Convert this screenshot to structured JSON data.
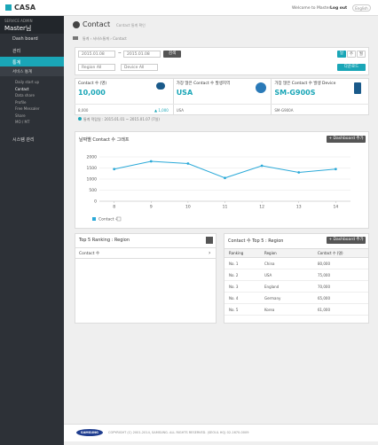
{
  "header": {
    "logo": "CASA",
    "welcome": "Welcome to Master",
    "logout": "Log out",
    "lang": "English"
  },
  "sidebar": {
    "role": "SERVICE ADMIN",
    "user": "Master님",
    "menu": [
      "Dash board",
      "관리",
      "통계"
    ],
    "section": "서비스 통계",
    "submenu": [
      "Daily start up",
      "Contact",
      "Data share",
      "Profile",
      "Free Messaler",
      "Share",
      "MO / MT"
    ],
    "system": "시스템 관리"
  },
  "page": {
    "title": "Contact",
    "subtitle": "Contact 통계 확인",
    "breadcrumb": [
      "통계",
      "서비스통계",
      "Contact"
    ]
  },
  "filter": {
    "start": "2015.01.08",
    "tilde": "~",
    "end": "2015.01.08",
    "search": "검색",
    "periods": [
      "일",
      "주",
      "월"
    ],
    "region": "Region All",
    "device": "Device All",
    "download": "다운로드"
  },
  "cards": [
    {
      "label": "Contact 수 (명)",
      "value": "10,000",
      "foot": "8,000",
      "delta": "▲ 1,000"
    },
    {
      "label": "가장 많은 Contact 수 발생지역",
      "value": "USA",
      "foot": "USA"
    },
    {
      "label": "가장 많은 Contact 수 발생 Device",
      "value": "SM-G900S",
      "foot": "SM-G900A"
    }
  ],
  "note": "통계 적립일 : 2015.01.01 ~ 2015.01.07 (7일)",
  "chart": {
    "type": "line",
    "title": "날짜별 Contact 수 그래프",
    "button": "+ Dashboard 추가",
    "x": [
      8,
      9,
      10,
      11,
      12,
      13,
      14
    ],
    "series": [
      {
        "name": "Contact 수",
        "color": "#2aa9d8",
        "values": [
          1450,
          1800,
          1700,
          1050,
          1600,
          1300,
          1450
        ]
      }
    ],
    "xlim": [
      7.6,
      14.4
    ],
    "xticks": [
      8,
      9,
      10,
      11,
      12,
      13,
      14
    ],
    "ylim": [
      0,
      2000
    ],
    "yticks": [
      0,
      500,
      1000,
      1500,
      2000
    ],
    "grid": true
  },
  "ranking": {
    "title": "Top 5 Ranking : Region",
    "row": "Contact 수"
  },
  "top5": {
    "title": "Contact 수 Top 5 : Region",
    "button": "+ Dashboard 추가",
    "columns": [
      "Ranking",
      "Region",
      "Contact 수 (명)"
    ],
    "rows": [
      [
        "No. 1",
        "China",
        "80,000"
      ],
      [
        "No. 2",
        "USA",
        "75,000"
      ],
      [
        "No. 3",
        "England",
        "70,000"
      ],
      [
        "No. 4",
        "Germany",
        "65,000"
      ],
      [
        "No. 5",
        "Korea",
        "61,000"
      ]
    ]
  },
  "footer": {
    "brand": "SAMSUNG",
    "copyright": "COPYRIGHT (C) 2001-2014, SAMSUNG. ALL RIGHTS RESERVED. (SEOUL HQ) 02-1670-0009"
  }
}
